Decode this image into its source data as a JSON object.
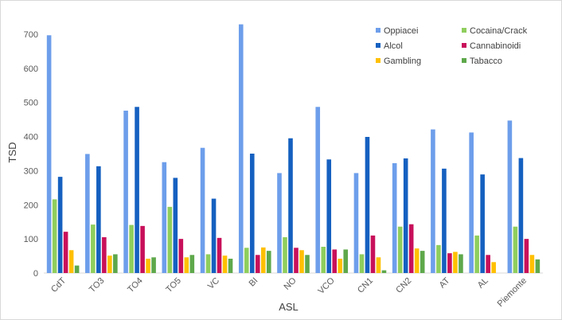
{
  "chart_data": {
    "type": "bar",
    "xlabel": "ASL",
    "ylabel": "TSD",
    "ylim": [
      0,
      700
    ],
    "yticks": [
      0,
      100,
      200,
      300,
      400,
      500,
      600,
      700
    ],
    "grid": false,
    "legend_position": "top-right",
    "categories": [
      "CdT",
      "TO3",
      "TO4",
      "TO5",
      "VC",
      "BI",
      "NO",
      "VCO",
      "CN1",
      "CN2",
      "AT",
      "AL",
      "Piemonte"
    ],
    "series": [
      {
        "name": "Oppiacei",
        "color": "#6d9eeb",
        "values": [
          697,
          349,
          476,
          325,
          367,
          729,
          293,
          487,
          293,
          322,
          421,
          412,
          447
        ]
      },
      {
        "name": "Cocaina/Crack",
        "color": "#8fce5d",
        "values": [
          216,
          142,
          141,
          194,
          55,
          74,
          105,
          77,
          55,
          136,
          82,
          110,
          136
        ]
      },
      {
        "name": "Alcol",
        "color": "#1560c0",
        "values": [
          282,
          313,
          487,
          279,
          218,
          350,
          395,
          333,
          399,
          336,
          306,
          289,
          337
        ]
      },
      {
        "name": "Cannabinoidi",
        "color": "#c8105a",
        "values": [
          121,
          105,
          138,
          100,
          103,
          53,
          74,
          69,
          110,
          143,
          58,
          53,
          100
        ]
      },
      {
        "name": "Gambling",
        "color": "#ffc000",
        "values": [
          67,
          51,
          42,
          46,
          51,
          75,
          67,
          42,
          46,
          72,
          62,
          32,
          53
        ]
      },
      {
        "name": "Tabacco",
        "color": "#5ea84b",
        "values": [
          22,
          55,
          46,
          53,
          42,
          65,
          53,
          69,
          8,
          65,
          55,
          0,
          40
        ]
      }
    ]
  }
}
